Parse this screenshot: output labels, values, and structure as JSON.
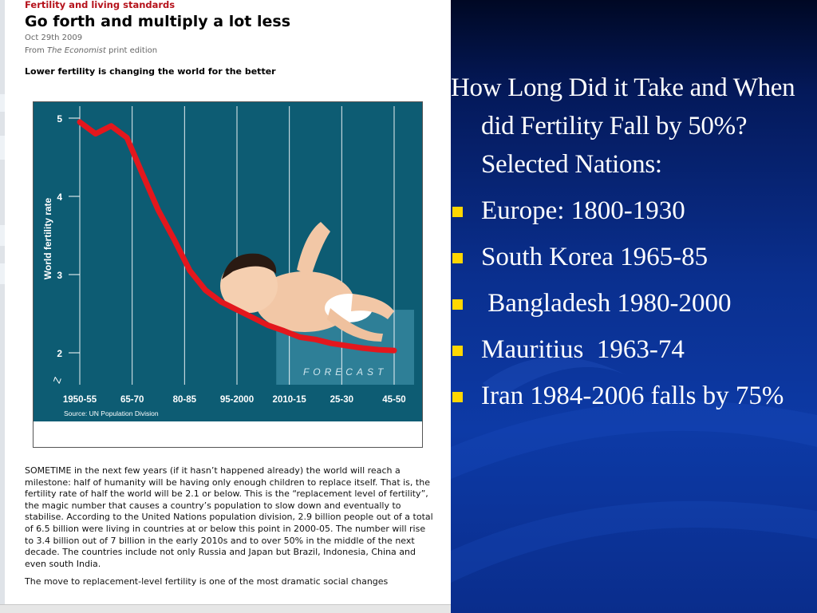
{
  "article": {
    "kicker": "Fertility and living standards",
    "headline": "Go forth and multiply a lot less",
    "date": "Oct 29th 2009",
    "source_prefix": "From ",
    "source_pub": "The Economist",
    "source_suffix": " print edition",
    "deck": "Lower fertility is changing the world for the better",
    "paragraphs": [
      "SOMETIME in the next few years (if it hasn’t happened already) the world will reach a milestone: half of humanity will be having only enough children to replace itself. That is, the fertility rate of half the world will be 2.1 or below. This is the “replacement level of fertility”, the magic number that causes a country’s population to slow down and eventually to stabilise. According to the United Nations population division, 2.9 billion people out of a total of 6.5 billion were living in countries at or below this point in 2000-05. The number will rise to 3.4 billion out of 7 billion in the early 2010s and to over 50% in the middle of the next decade. The countries include not only Russia and Japan but Brazil, Indonesia, China and even south India.",
      "The move to replacement-level fertility is one of the most dramatic social changes"
    ]
  },
  "chart_data": {
    "type": "line",
    "ylabel": "World fertility rate",
    "y_ticks": [
      "5",
      "4",
      "3",
      "2"
    ],
    "ylim": [
      2,
      5
    ],
    "x_tick_labels": [
      "1950-55",
      "65-70",
      "80-85",
      "95-2000",
      "2010-15",
      "25-30",
      "45-50"
    ],
    "x": [
      0,
      1,
      2,
      3,
      4,
      5,
      6,
      7,
      8,
      9,
      10,
      11,
      12,
      13,
      14,
      15,
      16,
      17,
      18,
      19,
      20
    ],
    "values": [
      4.95,
      4.8,
      4.9,
      4.75,
      4.28,
      3.82,
      3.45,
      3.05,
      2.8,
      2.65,
      2.55,
      2.45,
      2.35,
      2.28,
      2.2,
      2.17,
      2.12,
      2.09,
      2.06,
      2.04,
      2.03
    ],
    "forecast_label": "FORECAST",
    "axis_break": "Z",
    "source": "Source: UN Population Division",
    "grid": true,
    "colors": {
      "background": "#0d5c73",
      "forecast": "#2e7f97",
      "line": "#e3171d",
      "grid": "#ffffff"
    }
  },
  "slide": {
    "title": "How Long Did it Take and When did Fertility Fall by 50%?  Selected Nations:",
    "items": [
      "Europe: 1800-1930",
      "South Korea 1965-85",
      " Bangladesh 1980-2000",
      "Mauritius  1963-74",
      "Iran 1984-2006 falls by 75%"
    ],
    "bullet_color": "#ffd700"
  }
}
